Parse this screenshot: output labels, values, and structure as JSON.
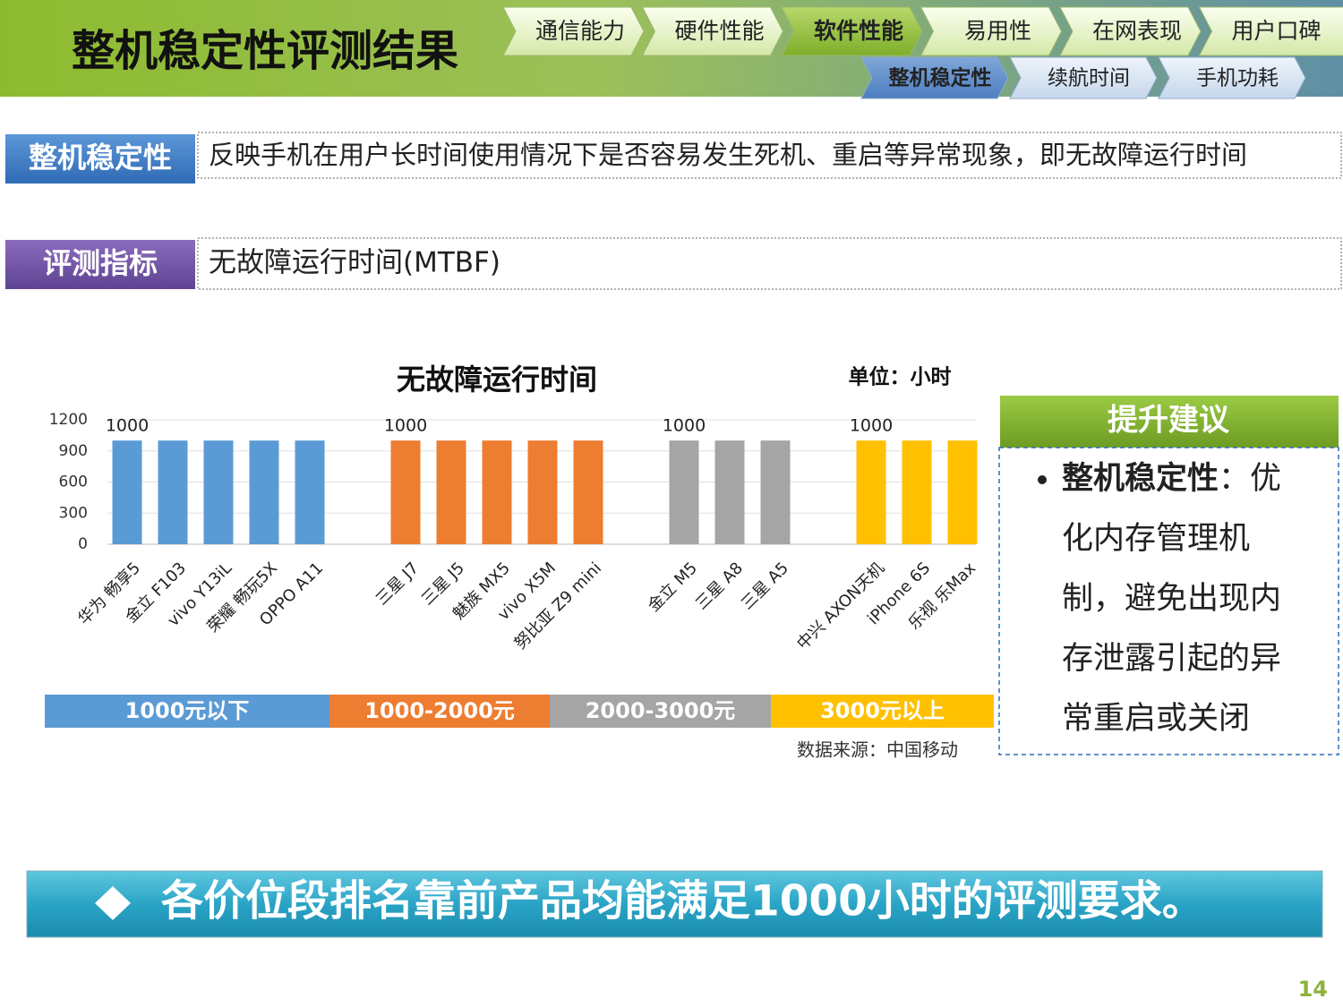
{
  "header": {
    "title": "整机稳定性评测结果",
    "nav": [
      "通信能力",
      "硬件性能",
      "软件性能",
      "易用性",
      "在网表现",
      "用户口碑"
    ],
    "nav_active_index": 2,
    "subnav": [
      "整机稳定性",
      "续航时间",
      "手机功耗"
    ],
    "subnav_active_index": 0
  },
  "definitions": [
    {
      "label": "整机稳定性",
      "text": "反映手机在用户长时间使用情况下是否容易发生死机、重启等异常现象，即无故障运行时间"
    },
    {
      "label": "评测指标",
      "text": "无故障运行时间(MTBF)"
    }
  ],
  "chart_data": {
    "type": "bar",
    "title": "无故障运行时间",
    "unit": "单位：小时",
    "source": "数据来源：中国移动",
    "categories": [
      "华为 畅享5",
      "金立 F103",
      "vivo Y13iL",
      "荣耀 畅玩5X",
      "OPPO A11",
      "三星 J7",
      "三星 J5",
      "魅族 MX5",
      "vivo X5M",
      "努比亚 Z9 mini",
      "金立 M5",
      "三星 A8",
      "三星 A5",
      "中兴 AXON天机",
      "iPhone 6S",
      "乐视 乐Max"
    ],
    "ylim": [
      0,
      1200
    ],
    "yticks": [
      0,
      300,
      600,
      900,
      1200
    ],
    "grid": true,
    "series": [
      {
        "name": "1000元以下",
        "color": "#5b9bd5",
        "values": [
          1000,
          1000,
          1000,
          1000,
          1000,
          null,
          null,
          null,
          null,
          null,
          null,
          null,
          null,
          null,
          null,
          null
        ],
        "value_labels": [
          "1000",
          null,
          null,
          null,
          null,
          null,
          null,
          null,
          null,
          null,
          null,
          null,
          null,
          null,
          null,
          null
        ]
      },
      {
        "name": "1000-2000元",
        "color": "#ed7d31",
        "values": [
          null,
          null,
          null,
          null,
          null,
          1000,
          1000,
          1000,
          1000,
          1000,
          null,
          null,
          null,
          null,
          null,
          null
        ],
        "value_labels": [
          null,
          null,
          null,
          null,
          null,
          "1000",
          null,
          null,
          null,
          null,
          null,
          null,
          null,
          null,
          null,
          null
        ]
      },
      {
        "name": "2000-3000元",
        "color": "#a5a5a5",
        "values": [
          null,
          null,
          null,
          null,
          null,
          null,
          null,
          null,
          null,
          null,
          1000,
          1000,
          1000,
          null,
          null,
          null
        ],
        "value_labels": [
          null,
          null,
          null,
          null,
          null,
          null,
          null,
          null,
          null,
          null,
          "1000",
          null,
          null,
          null,
          null,
          null
        ]
      },
      {
        "name": "3000元以上",
        "color": "#ffc000",
        "values": [
          null,
          null,
          null,
          null,
          null,
          null,
          null,
          null,
          null,
          null,
          null,
          null,
          null,
          1000,
          1000,
          1000
        ],
        "value_labels": [
          null,
          null,
          null,
          null,
          null,
          null,
          null,
          null,
          null,
          null,
          null,
          null,
          null,
          "1000",
          null,
          null
        ]
      }
    ]
  },
  "suggestion": {
    "title": "提升建议",
    "items": [
      {
        "bold": "整机稳定性",
        "text": "：优化内存管理机制，避免出现内存泄露引起的异常重启或关闭"
      }
    ]
  },
  "banner": "各价位段排名靠前产品均能满足1000小时的评测要求。",
  "page_number": "14"
}
